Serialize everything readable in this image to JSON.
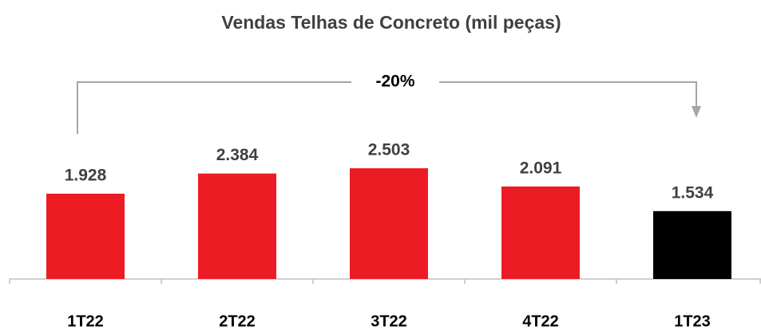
{
  "chart_data": {
    "type": "bar",
    "title": "Vendas Telhas de Concreto (mil peças)",
    "categories": [
      "1T22",
      "2T22",
      "3T22",
      "4T22",
      "1T23"
    ],
    "values": [
      1928,
      2384,
      2503,
      2091,
      1534
    ],
    "value_labels": [
      "1.928",
      "2.384",
      "2.503",
      "2.091",
      "1.534"
    ],
    "colors": [
      "#ed1c24",
      "#ed1c24",
      "#ed1c24",
      "#ed1c24",
      "#000000"
    ],
    "ylim": [
      0,
      3000
    ],
    "annotation": "-20%"
  }
}
